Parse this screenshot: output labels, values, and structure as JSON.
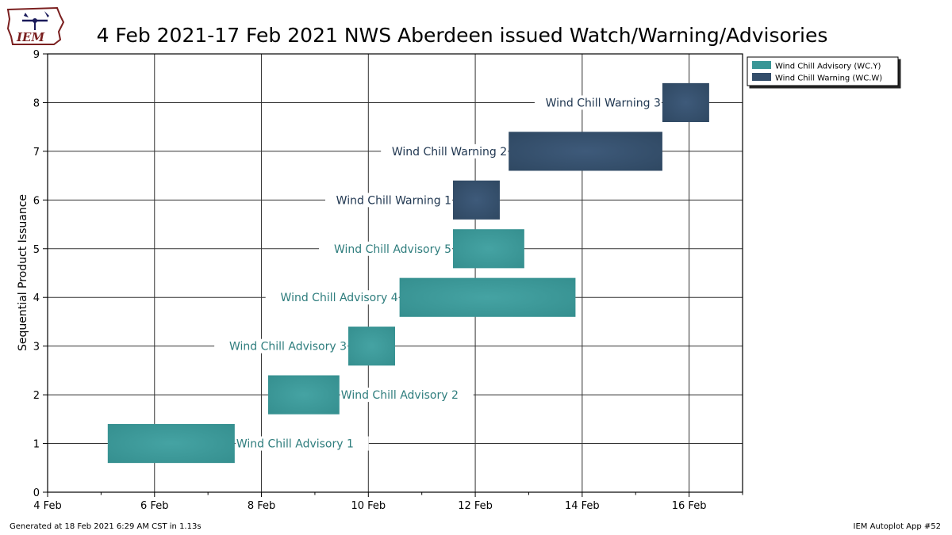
{
  "logo": {
    "text": "IEM"
  },
  "footer": {
    "left": "Generated at 18 Feb 2021 6:29 AM CST in 1.13s",
    "right": "IEM Autoplot App #52"
  },
  "colors": {
    "advisory": "#3a9696",
    "warning": "#334d6a",
    "advisory_label": "#2e7d7d",
    "warning_label": "#1f3650"
  },
  "chart_data": {
    "type": "gantt",
    "title": "4 Feb 2021-17 Feb 2021 NWS Aberdeen issued Watch/Warning/Advisories",
    "xlabel": "",
    "ylabel": "Sequential Product Issuance",
    "xlim": [
      "2021-02-04",
      "2021-02-17"
    ],
    "ylim": [
      0,
      9
    ],
    "x_ticks": [
      "4 Feb",
      "6 Feb",
      "8 Feb",
      "10 Feb",
      "12 Feb",
      "14 Feb",
      "16 Feb"
    ],
    "y_ticks": [
      0,
      1,
      2,
      3,
      4,
      5,
      6,
      7,
      8,
      9
    ],
    "grid": true,
    "legend_position": "outside-top-right",
    "legend": [
      {
        "label": "Wind Chill Advisory (WC.Y)",
        "color": "#3a9696"
      },
      {
        "label": "Wind Chill Warning (WC.W)",
        "color": "#334d6a"
      }
    ],
    "events": [
      {
        "label": "Wind Chill Advisory 1",
        "type": "advisory",
        "y": 1,
        "start": "2021-02-05 03:00",
        "end": "2021-02-07 12:00",
        "label_side": "right"
      },
      {
        "label": "Wind Chill Advisory 2",
        "type": "advisory",
        "y": 2,
        "start": "2021-02-08 03:00",
        "end": "2021-02-09 11:00",
        "label_side": "right"
      },
      {
        "label": "Wind Chill Advisory 3",
        "type": "advisory",
        "y": 3,
        "start": "2021-02-09 15:00",
        "end": "2021-02-10 12:00",
        "label_side": "left"
      },
      {
        "label": "Wind Chill Advisory 4",
        "type": "advisory",
        "y": 4,
        "start": "2021-02-10 14:00",
        "end": "2021-02-13 21:00",
        "label_side": "left"
      },
      {
        "label": "Wind Chill Advisory 5",
        "type": "advisory",
        "y": 5,
        "start": "2021-02-11 14:00",
        "end": "2021-02-12 22:00",
        "label_side": "left"
      },
      {
        "label": "Wind Chill Warning 1",
        "type": "warning",
        "y": 6,
        "start": "2021-02-11 14:00",
        "end": "2021-02-12 11:00",
        "label_side": "left"
      },
      {
        "label": "Wind Chill Warning 2",
        "type": "warning",
        "y": 7,
        "start": "2021-02-12 15:00",
        "end": "2021-02-15 12:00",
        "label_side": "left"
      },
      {
        "label": "Wind Chill Warning 3",
        "type": "warning",
        "y": 8,
        "start": "2021-02-15 12:00",
        "end": "2021-02-16 09:00",
        "label_side": "left"
      }
    ]
  }
}
